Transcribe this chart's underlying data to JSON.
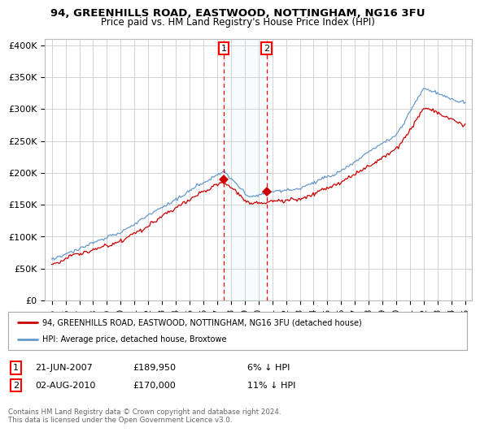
{
  "title1": "94, GREENHILLS ROAD, EASTWOOD, NOTTINGHAM, NG16 3FU",
  "title2": "Price paid vs. HM Land Registry's House Price Index (HPI)",
  "ylabel_ticks": [
    "£0",
    "£50K",
    "£100K",
    "£150K",
    "£200K",
    "£250K",
    "£300K",
    "£350K",
    "£400K"
  ],
  "ylim": [
    0,
    410000
  ],
  "xlim_start": 1994.5,
  "xlim_end": 2025.5,
  "transaction1": {
    "date_num": 2007.47,
    "price": 189950,
    "label": "1",
    "date_str": "21-JUN-2007",
    "pct": "6%"
  },
  "transaction2": {
    "date_num": 2010.58,
    "price": 170000,
    "label": "2",
    "date_str": "02-AUG-2010",
    "pct": "11%"
  },
  "hpi_color": "#6699cc",
  "price_color": "#cc0000",
  "background_color": "#ffffff",
  "grid_color": "#cccccc",
  "legend_label1": "94, GREENHILLS ROAD, EASTWOOD, NOTTINGHAM, NG16 3FU (detached house)",
  "legend_label2": "HPI: Average price, detached house, Broxtowe",
  "footer": "Contains HM Land Registry data © Crown copyright and database right 2024.\nThis data is licensed under the Open Government Licence v3.0.",
  "xticks": [
    1995,
    1996,
    1997,
    1998,
    1999,
    2000,
    2001,
    2002,
    2003,
    2004,
    2005,
    2006,
    2007,
    2008,
    2009,
    2010,
    2011,
    2012,
    2013,
    2014,
    2015,
    2016,
    2017,
    2018,
    2019,
    2020,
    2021,
    2022,
    2023,
    2024,
    2025
  ]
}
